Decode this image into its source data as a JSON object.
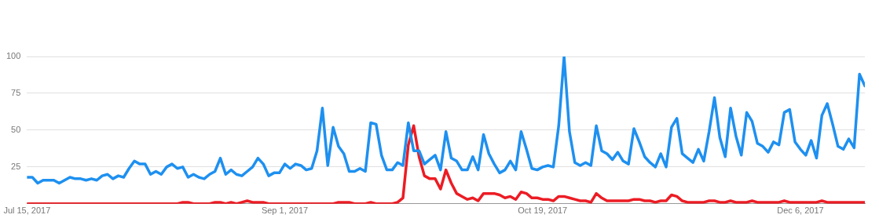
{
  "chart_data": {
    "type": "line",
    "x": [
      "2017-07-15",
      "2017-07-16",
      "2017-07-17",
      "2017-07-18",
      "2017-07-19",
      "2017-07-20",
      "2017-07-21",
      "2017-07-22",
      "2017-07-23",
      "2017-07-24",
      "2017-07-25",
      "2017-07-26",
      "2017-07-27",
      "2017-07-28",
      "2017-07-29",
      "2017-07-30",
      "2017-07-31",
      "2017-08-01",
      "2017-08-02",
      "2017-08-03",
      "2017-08-04",
      "2017-08-05",
      "2017-08-06",
      "2017-08-07",
      "2017-08-08",
      "2017-08-09",
      "2017-08-10",
      "2017-08-11",
      "2017-08-12",
      "2017-08-13",
      "2017-08-14",
      "2017-08-15",
      "2017-08-16",
      "2017-08-17",
      "2017-08-18",
      "2017-08-19",
      "2017-08-20",
      "2017-08-21",
      "2017-08-22",
      "2017-08-23",
      "2017-08-24",
      "2017-08-25",
      "2017-08-26",
      "2017-08-27",
      "2017-08-28",
      "2017-08-29",
      "2017-08-30",
      "2017-08-31",
      "2017-09-01",
      "2017-09-02",
      "2017-09-03",
      "2017-09-04",
      "2017-09-05",
      "2017-09-06",
      "2017-09-07",
      "2017-09-08",
      "2017-09-09",
      "2017-09-10",
      "2017-09-11",
      "2017-09-12",
      "2017-09-13",
      "2017-09-14",
      "2017-09-15",
      "2017-09-16",
      "2017-09-17",
      "2017-09-18",
      "2017-09-19",
      "2017-09-20",
      "2017-09-21",
      "2017-09-22",
      "2017-09-23",
      "2017-09-24",
      "2017-09-25",
      "2017-09-26",
      "2017-09-27",
      "2017-09-28",
      "2017-09-29",
      "2017-09-30",
      "2017-10-01",
      "2017-10-02",
      "2017-10-03",
      "2017-10-04",
      "2017-10-05",
      "2017-10-06",
      "2017-10-07",
      "2017-10-08",
      "2017-10-09",
      "2017-10-10",
      "2017-10-11",
      "2017-10-12",
      "2017-10-13",
      "2017-10-14",
      "2017-10-15",
      "2017-10-16",
      "2017-10-17",
      "2017-10-18",
      "2017-10-19",
      "2017-10-20",
      "2017-10-21",
      "2017-10-22",
      "2017-10-23",
      "2017-10-24",
      "2017-10-25",
      "2017-10-26",
      "2017-10-27",
      "2017-10-28",
      "2017-10-29",
      "2017-10-30",
      "2017-10-31",
      "2017-11-01",
      "2017-11-02",
      "2017-11-03",
      "2017-11-04",
      "2017-11-05",
      "2017-11-06",
      "2017-11-07",
      "2017-11-08",
      "2017-11-09",
      "2017-11-10",
      "2017-11-11",
      "2017-11-12",
      "2017-11-13",
      "2017-11-14",
      "2017-11-15",
      "2017-11-16",
      "2017-11-17",
      "2017-11-18",
      "2017-11-19",
      "2017-11-20",
      "2017-11-21",
      "2017-11-22",
      "2017-11-23",
      "2017-11-24",
      "2017-11-25",
      "2017-11-26",
      "2017-11-27",
      "2017-11-28",
      "2017-11-29",
      "2017-11-30",
      "2017-12-01",
      "2017-12-02",
      "2017-12-03",
      "2017-12-04",
      "2017-12-05",
      "2017-12-06",
      "2017-12-07",
      "2017-12-08",
      "2017-12-09",
      "2017-12-10",
      "2017-12-11",
      "2017-12-12",
      "2017-12-13",
      "2017-12-14",
      "2017-12-15",
      "2017-12-16",
      "2017-12-17",
      "2017-12-18"
    ],
    "series": [
      {
        "color": "#1e90f0",
        "values": [
          18,
          18,
          14,
          16,
          16,
          16,
          14,
          16,
          18,
          17,
          17,
          16,
          17,
          16,
          19,
          20,
          17,
          19,
          18,
          24,
          29,
          27,
          27,
          20,
          22,
          20,
          25,
          27,
          24,
          25,
          18,
          20,
          18,
          17,
          20,
          22,
          31,
          20,
          23,
          20,
          19,
          22,
          25,
          31,
          27,
          19,
          21,
          21,
          27,
          24,
          27,
          26,
          23,
          24,
          36,
          65,
          26,
          52,
          39,
          34,
          22,
          22,
          24,
          22,
          55,
          54,
          33,
          23,
          23,
          28,
          26,
          55,
          36,
          36,
          27,
          30,
          33,
          23,
          49,
          31,
          29,
          23,
          23,
          32,
          23,
          47,
          34,
          27,
          21,
          23,
          29,
          23,
          49,
          37,
          24,
          23,
          25,
          26,
          25,
          53,
          100,
          49,
          28,
          26,
          28,
          26,
          53,
          36,
          34,
          30,
          35,
          29,
          27,
          51,
          42,
          32,
          28,
          25,
          34,
          25,
          52,
          58,
          34,
          31,
          28,
          37,
          29,
          49,
          72,
          45,
          32,
          65,
          46,
          33,
          62,
          56,
          41,
          39,
          35,
          42,
          40,
          62,
          64,
          42,
          37,
          33,
          43,
          31,
          60,
          68,
          54,
          39,
          37,
          44,
          38,
          88,
          80
        ]
      },
      {
        "color": "#ec1c24",
        "values": [
          0,
          0,
          0,
          0,
          0,
          0,
          0,
          0,
          0,
          0,
          0,
          0,
          0,
          0,
          0,
          0,
          0,
          0,
          0,
          0,
          0,
          0,
          0,
          0,
          0,
          0,
          0,
          0,
          0,
          1,
          1,
          0,
          0,
          0,
          0,
          1,
          1,
          0,
          1,
          0,
          1,
          2,
          1,
          1,
          1,
          0,
          0,
          0,
          0,
          0,
          0,
          0,
          0,
          0,
          0,
          0,
          0,
          0,
          1,
          1,
          1,
          0,
          0,
          0,
          1,
          0,
          0,
          0,
          0,
          1,
          4,
          40,
          53,
          32,
          19,
          17,
          17,
          10,
          23,
          14,
          7,
          5,
          3,
          4,
          2,
          7,
          7,
          7,
          6,
          4,
          5,
          3,
          8,
          7,
          4,
          4,
          3,
          3,
          2,
          5,
          5,
          4,
          3,
          2,
          2,
          1,
          7,
          4,
          2,
          2,
          2,
          2,
          2,
          3,
          3,
          2,
          2,
          1,
          2,
          2,
          6,
          5,
          2,
          1,
          1,
          1,
          1,
          2,
          2,
          1,
          1,
          2,
          1,
          1,
          1,
          2,
          1,
          1,
          1,
          1,
          1,
          2,
          1,
          1,
          1,
          1,
          1,
          1,
          2,
          1,
          1,
          1,
          1,
          1,
          1,
          1,
          1
        ]
      }
    ],
    "xlim": [
      "2017-07-15",
      "2017-12-18"
    ],
    "xticks": [
      {
        "value": "2017-07-15",
        "label": "Jul 15, 2017"
      },
      {
        "value": "2017-09-01",
        "label": "Sep 1, 2017"
      },
      {
        "value": "2017-10-19",
        "label": "Oct 19, 2017"
      },
      {
        "value": "2017-12-06",
        "label": "Dec 6, 2017"
      }
    ],
    "ylim": [
      0,
      100
    ],
    "yticks": [
      {
        "value": 0,
        "label": null
      },
      25,
      50,
      75,
      100
    ],
    "grid": "y",
    "legend": false,
    "marker": "none",
    "line_style": "solid"
  }
}
